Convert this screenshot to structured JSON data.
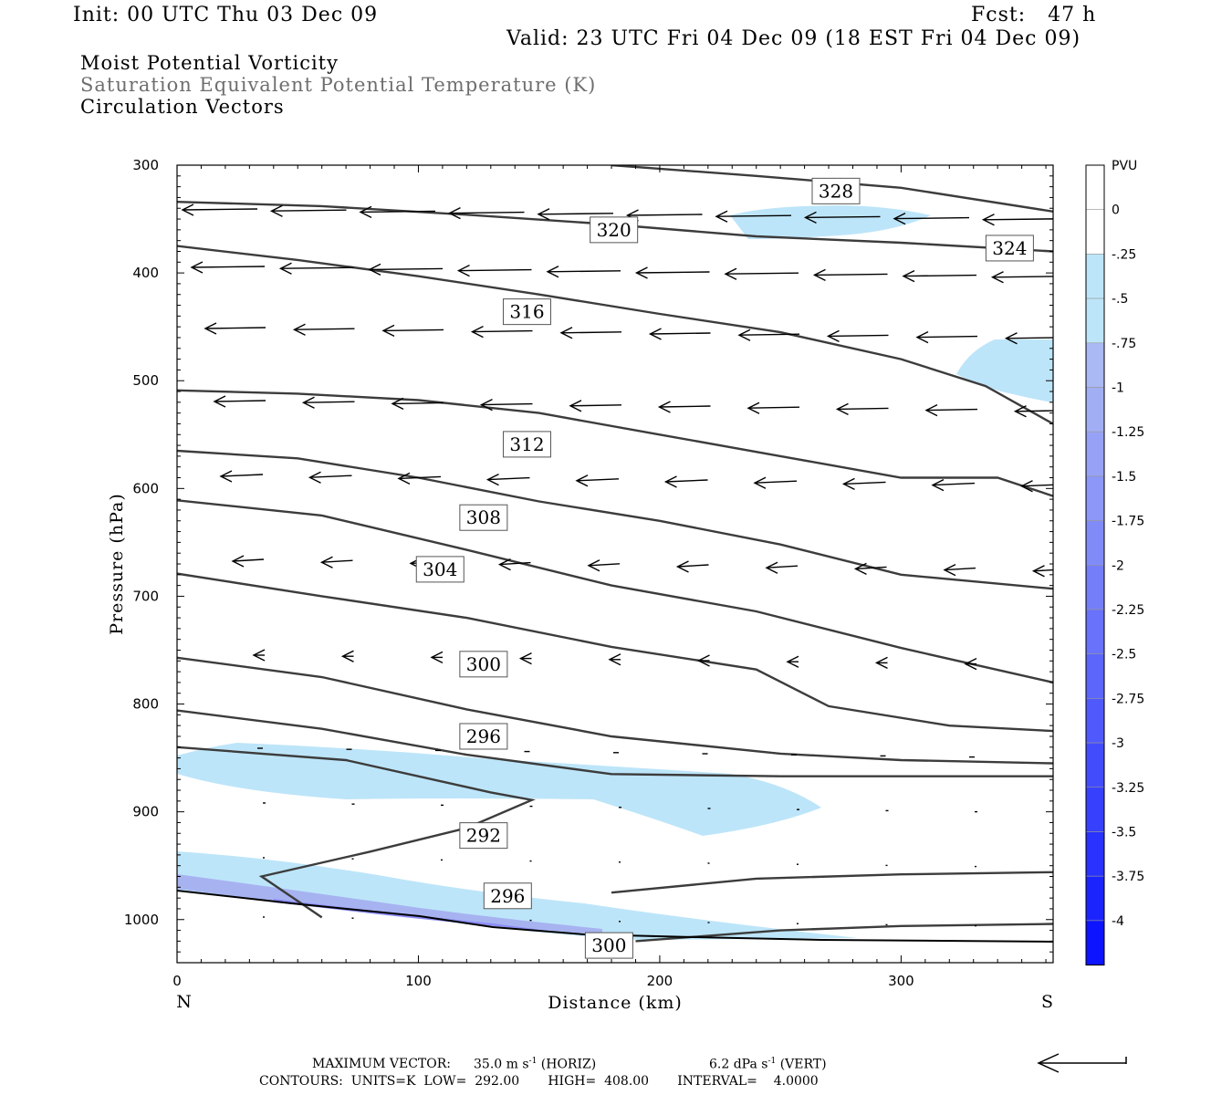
{
  "header": {
    "init": "Init: 00 UTC Thu 03 Dec 09",
    "fcst": "Fcst:   47 h",
    "valid": "Valid: 23 UTC Fri 04 Dec 09 (18 EST Fri 04 Dec 09)",
    "field1": "Moist Potential Vorticity",
    "field2": "Saturation Equivalent Potential Temperature (K)",
    "field3": "Circulation Vectors"
  },
  "footer": {
    "max_vector_label": "MAXIMUM VECTOR:",
    "max_vector_horiz_value": "35.0 m s",
    "max_vector_horiz_exp": "-1",
    "max_vector_horiz_unit": "(HORIZ)",
    "max_vector_vert_value": "6.2 dPa s",
    "max_vector_vert_exp": "-1",
    "max_vector_vert_unit": "(VERT)",
    "contours": "CONTOURS:  UNITS=K  LOW=  292.00       HIGH=  408.00       INTERVAL=    4.0000"
  },
  "colors": {
    "contour": "#3c3c3c",
    "pv_light": "#bde5f9",
    "pv_mid": "#a7b3f0",
    "pv_deep": "#8c8cf5"
  },
  "chart_data": {
    "type": "cross-section",
    "xlabel": "Distance (km)",
    "ylabel": "Pressure (hPa)",
    "xlim": [
      0,
      363
    ],
    "ylim": [
      1040,
      300
    ],
    "x_ticks": [
      0,
      100,
      200,
      300
    ],
    "y_ticks": [
      300,
      400,
      500,
      600,
      700,
      800,
      900,
      1000
    ],
    "end_labels": {
      "left": "N",
      "right": "S"
    },
    "theta_es_contours": [
      {
        "level": 328,
        "label": "328",
        "points": [
          [
            180,
            300
          ],
          [
            240,
            310
          ],
          [
            300,
            321
          ],
          [
            363,
            343
          ]
        ],
        "label_at": [
          273,
          324
        ]
      },
      {
        "level": 324,
        "label": "324",
        "points": [
          [
            0,
            334
          ],
          [
            60,
            338
          ],
          [
            120,
            346
          ],
          [
            180,
            355
          ],
          [
            240,
            366
          ],
          [
            300,
            372
          ],
          [
            363,
            380
          ]
        ],
        "label_at": [
          345,
          377
        ]
      },
      {
        "level": 320,
        "label": "320",
        "points": [
          [
            0,
            375
          ],
          [
            50,
            388
          ],
          [
            100,
            403
          ],
          [
            150,
            420
          ],
          [
            200,
            438
          ],
          [
            250,
            455
          ],
          [
            300,
            480
          ],
          [
            335,
            505
          ],
          [
            363,
            540
          ]
        ],
        "label_at": [
          181,
          360
        ]
      },
      {
        "level": 316,
        "label": "316",
        "points": [
          [
            0,
            509
          ],
          [
            50,
            512
          ],
          [
            100,
            518
          ],
          [
            150,
            530
          ],
          [
            200,
            550
          ],
          [
            250,
            570
          ],
          [
            300,
            590
          ],
          [
            340,
            590
          ],
          [
            363,
            607
          ]
        ],
        "label_at": [
          145,
          436
        ]
      },
      {
        "level": 312,
        "label": "312",
        "points": [
          [
            0,
            565
          ],
          [
            50,
            572
          ],
          [
            100,
            590
          ],
          [
            150,
            612
          ],
          [
            200,
            630
          ],
          [
            250,
            652
          ],
          [
            300,
            680
          ],
          [
            363,
            693
          ]
        ],
        "label_at": [
          145,
          559
        ]
      },
      {
        "level": 308,
        "label": "308",
        "points": [
          [
            0,
            611
          ],
          [
            60,
            625
          ],
          [
            120,
            657
          ],
          [
            180,
            690
          ],
          [
            240,
            714
          ],
          [
            300,
            748
          ],
          [
            363,
            780
          ]
        ],
        "label_at": [
          127,
          627
        ]
      },
      {
        "level": 304,
        "label": "304",
        "points": [
          [
            0,
            679
          ],
          [
            60,
            700
          ],
          [
            120,
            720
          ],
          [
            180,
            747
          ],
          [
            240,
            768
          ],
          [
            270,
            802
          ],
          [
            320,
            820
          ],
          [
            363,
            825
          ]
        ],
        "label_at": [
          109,
          675
        ]
      },
      {
        "level": 300,
        "label": "300",
        "points": [
          [
            0,
            757
          ],
          [
            60,
            775
          ],
          [
            120,
            805
          ],
          [
            180,
            830
          ],
          [
            250,
            846
          ],
          [
            300,
            852
          ],
          [
            363,
            855
          ]
        ],
        "label_at": [
          127,
          763
        ]
      },
      {
        "level": 296,
        "label": "296",
        "points": [
          [
            0,
            806
          ],
          [
            60,
            823
          ],
          [
            120,
            847
          ],
          [
            180,
            865
          ],
          [
            250,
            867
          ],
          [
            363,
            867
          ]
        ],
        "label_at": [
          127,
          830
        ]
      },
      {
        "level": 292,
        "label": "292",
        "points": [
          [
            0,
            840
          ],
          [
            70,
            852
          ],
          [
            130,
            882
          ],
          [
            147,
            889
          ],
          [
            120,
            915
          ],
          [
            80,
            937
          ],
          [
            35,
            960
          ],
          [
            60,
            998
          ]
        ],
        "label_at": [
          127,
          922
        ]
      },
      {
        "level": 296,
        "label": "296",
        "points": [
          [
            180,
            975
          ],
          [
            240,
            962
          ],
          [
            300,
            958
          ],
          [
            363,
            956
          ]
        ],
        "label_at": [
          137,
          978
        ]
      },
      {
        "level": 300,
        "label": "300",
        "points": [
          [
            190,
            1020
          ],
          [
            250,
            1010
          ],
          [
            300,
            1006
          ],
          [
            363,
            1004
          ]
        ],
        "label_at": [
          179,
          1024
        ]
      }
    ],
    "pv_legend": {
      "title": "PVU",
      "levels": [
        "0",
        "-.25",
        "-.5",
        "-.75",
        "-1",
        "-1.25",
        "-1.5",
        "-1.75",
        "-2",
        "-2.25",
        "-2.5",
        "-2.75",
        "-3",
        "-3.25",
        "-3.5",
        "-3.75",
        "-4"
      ]
    },
    "max_vector": {
      "horizontal_m_s": 35.0,
      "vertical_dPa_s": 6.2
    },
    "contour_summary": {
      "units": "K",
      "low": 292.0,
      "high": 408.0,
      "interval": 4.0
    }
  }
}
